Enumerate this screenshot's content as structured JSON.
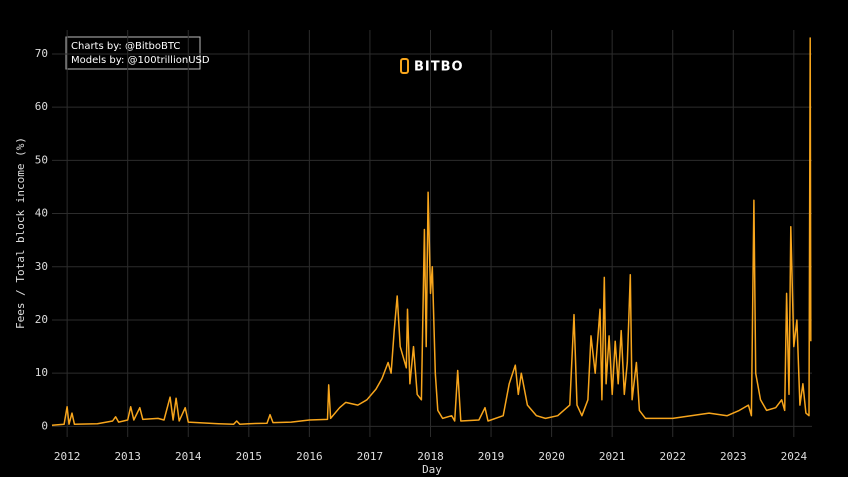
{
  "chart_data": {
    "type": "line",
    "annotations": [
      "Charts by: @BitboBTC",
      "Models by: @100trillionUSD"
    ],
    "logo": "BITBO",
    "xlabel": "Day",
    "ylabel": "Fees / Total block income (%)",
    "xlim": [
      2011.75,
      2024.3
    ],
    "xticks": [
      2012,
      2013,
      2014,
      2015,
      2016,
      2017,
      2018,
      2019,
      2020,
      2021,
      2022,
      2023,
      2024
    ],
    "ylim": [
      -2,
      74.5
    ],
    "yticks": [
      0,
      10,
      20,
      30,
      40,
      50,
      60,
      70
    ],
    "grid": true,
    "series": [
      {
        "color": "#f7a51c",
        "x": [
          2011.75,
          2011.95,
          2012.0,
          2012.03,
          2012.08,
          2012.12,
          2012.5,
          2012.75,
          2012.8,
          2012.85,
          2013.0,
          2013.05,
          2013.1,
          2013.2,
          2013.25,
          2013.5,
          2013.6,
          2013.7,
          2013.75,
          2013.8,
          2013.85,
          2013.95,
          2014.0,
          2014.5,
          2014.75,
          2014.8,
          2014.85,
          2015.0,
          2015.3,
          2015.35,
          2015.4,
          2015.7,
          2016.0,
          2016.3,
          2016.32,
          2016.35,
          2016.5,
          2016.6,
          2016.8,
          2016.95,
          2017.1,
          2017.2,
          2017.3,
          2017.35,
          2017.4,
          2017.45,
          2017.5,
          2017.6,
          2017.62,
          2017.66,
          2017.72,
          2017.78,
          2017.85,
          2017.9,
          2017.93,
          2017.96,
          2018.0,
          2018.03,
          2018.08,
          2018.12,
          2018.2,
          2018.35,
          2018.4,
          2018.45,
          2018.5,
          2018.8,
          2018.9,
          2018.95,
          2019.2,
          2019.3,
          2019.4,
          2019.45,
          2019.5,
          2019.6,
          2019.75,
          2019.9,
          2020.1,
          2020.3,
          2020.37,
          2020.42,
          2020.5,
          2020.6,
          2020.65,
          2020.72,
          2020.8,
          2020.83,
          2020.87,
          2020.9,
          2020.95,
          2021.0,
          2021.05,
          2021.1,
          2021.15,
          2021.2,
          2021.25,
          2021.3,
          2021.33,
          2021.4,
          2021.45,
          2021.55,
          2022.0,
          2022.3,
          2022.6,
          2022.9,
          2023.1,
          2023.25,
          2023.3,
          2023.34,
          2023.37,
          2023.45,
          2023.55,
          2023.7,
          2023.8,
          2023.85,
          2023.88,
          2023.92,
          2023.95,
          2024.0,
          2024.05,
          2024.1,
          2024.15,
          2024.2,
          2024.25,
          2024.27,
          2024.28
        ],
        "values": [
          0.2,
          0.4,
          3.7,
          0.4,
          2.5,
          0.4,
          0.5,
          1.0,
          1.8,
          0.8,
          1.2,
          3.7,
          1.2,
          3.5,
          1.3,
          1.5,
          1.2,
          5.5,
          1.2,
          5.3,
          1.0,
          3.5,
          0.8,
          0.5,
          0.4,
          1.0,
          0.4,
          0.5,
          0.6,
          2.2,
          0.7,
          0.8,
          1.2,
          1.3,
          7.8,
          1.5,
          3.5,
          4.5,
          4.0,
          5.0,
          7.0,
          9.0,
          12.0,
          10.0,
          18.0,
          24.5,
          15.0,
          11.0,
          22.0,
          8.0,
          15.0,
          6.0,
          5.0,
          37.0,
          15.0,
          44.0,
          25.0,
          30.0,
          10.0,
          3.0,
          1.5,
          2.0,
          1.0,
          10.5,
          1.0,
          1.2,
          3.5,
          1.0,
          2.0,
          8.0,
          11.5,
          6.0,
          10.0,
          4.0,
          2.0,
          1.5,
          2.0,
          4.0,
          21.0,
          4.0,
          2.0,
          5.0,
          17.0,
          10.0,
          22.0,
          5.0,
          28.0,
          8.0,
          17.0,
          6.0,
          16.0,
          8.0,
          18.0,
          6.0,
          12.0,
          28.5,
          5.0,
          12.0,
          3.0,
          1.5,
          1.5,
          2.0,
          2.5,
          2.0,
          3.0,
          4.0,
          2.0,
          42.5,
          10.0,
          5.0,
          3.0,
          3.5,
          5.0,
          3.0,
          25.0,
          6.0,
          37.5,
          15.0,
          20.0,
          4.0,
          8.0,
          2.5,
          2.0,
          73.0,
          16.0
        ]
      }
    ]
  }
}
